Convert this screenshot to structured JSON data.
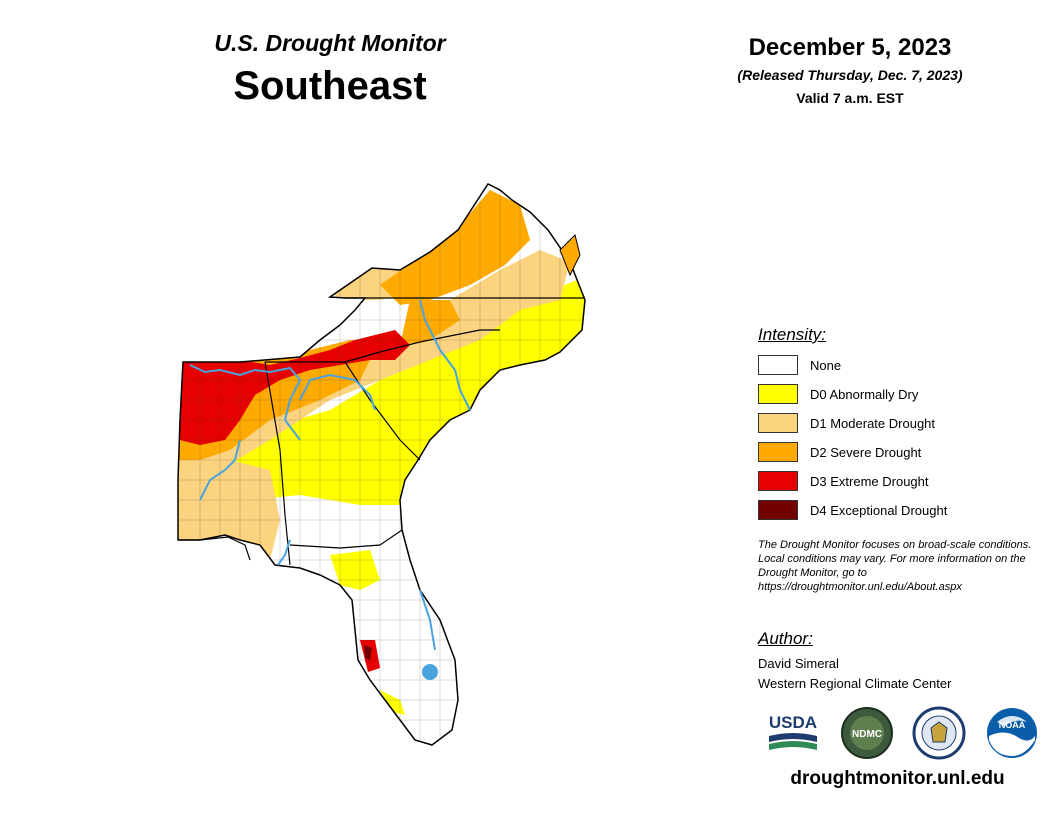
{
  "header": {
    "monitor_title": "U.S. Drought Monitor",
    "region": "Southeast",
    "date": "December 5, 2023",
    "released": "(Released Thursday, Dec. 7, 2023)",
    "valid": "Valid 7 a.m. EST"
  },
  "legend": {
    "title": "Intensity:",
    "items": [
      {
        "label": "None",
        "color": "#ffffff"
      },
      {
        "label": "D0 Abnormally Dry",
        "color": "#ffff00"
      },
      {
        "label": "D1 Moderate Drought",
        "color": "#fcd37f"
      },
      {
        "label": "D2 Severe Drought",
        "color": "#ffaa00"
      },
      {
        "label": "D3 Extreme Drought",
        "color": "#e60000"
      },
      {
        "label": "D4 Exceptional Drought",
        "color": "#730000"
      }
    ]
  },
  "disclaimer": "The Drought Monitor focuses on broad-scale conditions. Local conditions may vary. For more information on the Drought Monitor, go to https://droughtmonitor.unl.edu/About.aspx",
  "author": {
    "heading": "Author:",
    "name": "David Simeral",
    "organization": "Western Regional Climate Center"
  },
  "logos": {
    "usda": "USDA",
    "ndmc": "NDMC",
    "noaa": "NOAA"
  },
  "website": "droughtmonitor.unl.edu",
  "map": {
    "states": [
      "Virginia",
      "North Carolina",
      "South Carolina",
      "Georgia",
      "Alabama",
      "Florida"
    ],
    "colors": {
      "none": "#ffffff",
      "d0": "#ffff00",
      "d1": "#fcd37f",
      "d2": "#ffaa00",
      "d3": "#e60000",
      "water": "#4aa3df",
      "border": "#000000"
    }
  }
}
